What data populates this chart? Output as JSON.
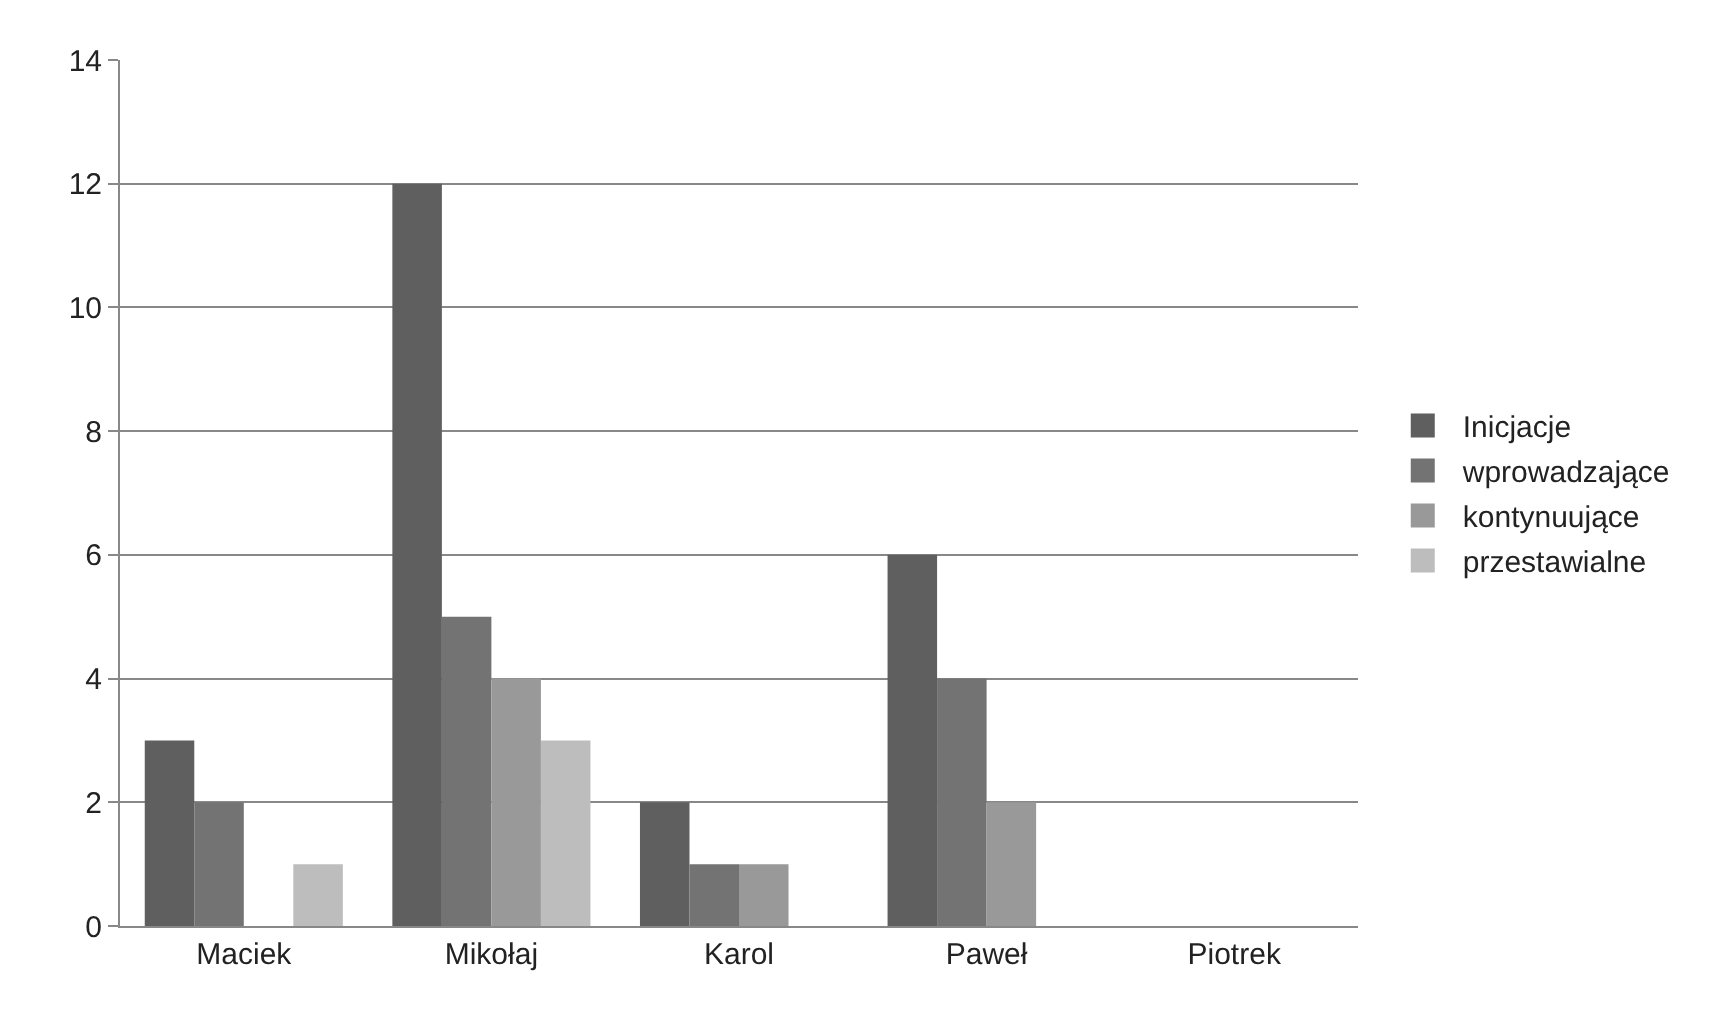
{
  "chart_data": {
    "type": "bar",
    "categories": [
      "Maciek",
      "Mikołaj",
      "Karol",
      "Paweł",
      "Piotrek"
    ],
    "series": [
      {
        "name": "Inicjacje",
        "color": "#5f5f5f",
        "values": [
          3,
          12,
          2,
          6,
          0
        ]
      },
      {
        "name": "wprowadzające",
        "color": "#737373",
        "values": [
          2,
          5,
          1,
          4,
          0
        ]
      },
      {
        "name": "kontynuujące",
        "color": "#999999",
        "values": [
          0,
          4,
          1,
          2,
          0
        ]
      },
      {
        "name": "przestawialne",
        "color": "#bdbdbd",
        "values": [
          1,
          3,
          0,
          0,
          0
        ]
      }
    ],
    "ylim": [
      0,
      14
    ],
    "yticks": [
      0,
      2,
      4,
      6,
      8,
      10,
      12,
      14
    ],
    "grid": "y",
    "legend": "right"
  }
}
